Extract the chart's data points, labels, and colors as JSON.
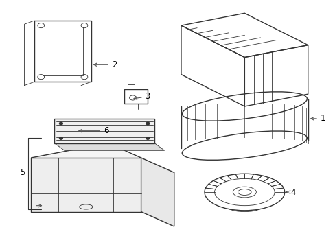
{
  "background_color": "#ffffff",
  "line_color": "#333333",
  "label_color": "#000000",
  "fig_width": 4.89,
  "fig_height": 3.6,
  "dpi": 100
}
